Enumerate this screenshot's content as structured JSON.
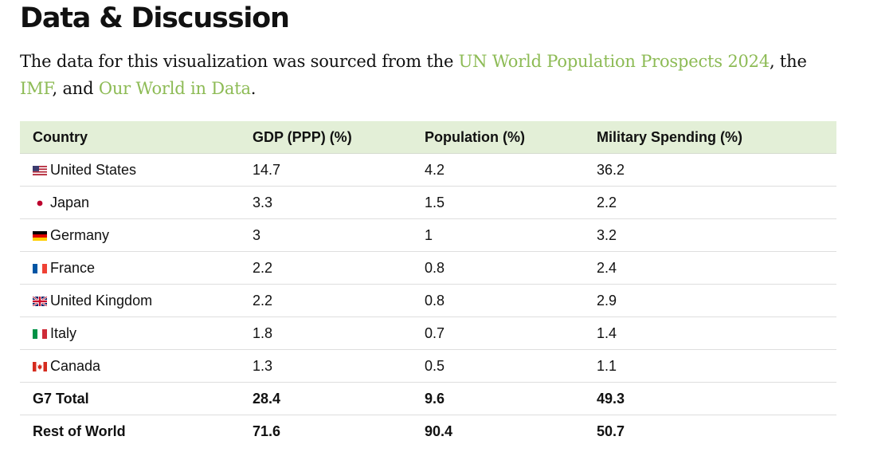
{
  "section": {
    "title": "Data & Discussion"
  },
  "intro": {
    "text_1": "The data for this visualization was sourced from the ",
    "link_1": "UN World Population Prospects 2024",
    "text_2": ", the ",
    "link_2": "IMF",
    "text_3": ", and ",
    "link_3": "Our World in Data",
    "text_4": ".",
    "link_color": "#8dbb55"
  },
  "table": {
    "header_bg": "#e3efd7",
    "columns": [
      "Country",
      "GDP (PPP) (%)",
      "Population (%)",
      "Military Spending (%)"
    ],
    "rows": [
      {
        "flag": "us-flag-icon",
        "country": "United States",
        "gdp": "14.7",
        "population": "4.2",
        "military": "36.2"
      },
      {
        "flag": "japan-flag-icon",
        "country": "Japan",
        "gdp": "3.3",
        "population": "1.5",
        "military": "2.2"
      },
      {
        "flag": "germany-flag-icon",
        "country": "Germany",
        "gdp": "3",
        "population": "1",
        "military": "3.2"
      },
      {
        "flag": "france-flag-icon",
        "country": "France",
        "gdp": "2.2",
        "population": "0.8",
        "military": "2.4"
      },
      {
        "flag": "uk-flag-icon",
        "country": "United Kingdom",
        "gdp": "2.2",
        "population": "0.8",
        "military": "2.9"
      },
      {
        "flag": "italy-flag-icon",
        "country": "Italy",
        "gdp": "1.8",
        "population": "0.7",
        "military": "1.4"
      },
      {
        "flag": "canada-flag-icon",
        "country": "Canada",
        "gdp": "1.3",
        "population": "0.5",
        "military": "1.1"
      }
    ],
    "totals": [
      {
        "country": "G7 Total",
        "gdp": "28.4",
        "population": "9.6",
        "military": "49.3"
      },
      {
        "country": "Rest of World",
        "gdp": "71.6",
        "population": "90.4",
        "military": "50.7"
      }
    ]
  }
}
